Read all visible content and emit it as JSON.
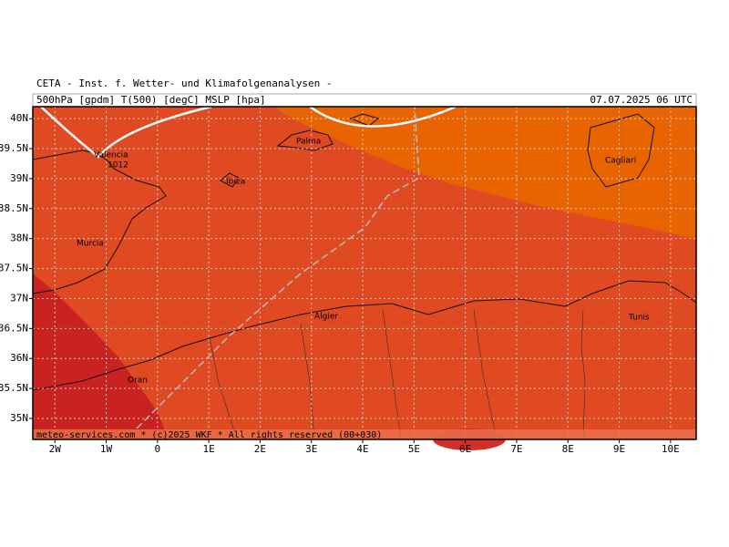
{
  "header": {
    "institute": "CETA - Inst. f. Wetter- und Klimafolgenanalysen -",
    "parameters": "500hPa [gpdm] T(500) [degC] MSLP [hpa]",
    "valid_time": "07.07.2025 06 UTC"
  },
  "map": {
    "xlim": [
      -2.43,
      10.5
    ],
    "ylim": [
      34.65,
      40.2
    ],
    "grid": true,
    "xticks": [
      {
        "value": -2,
        "label": "2W"
      },
      {
        "value": -1,
        "label": "1W"
      },
      0,
      {
        "value": 1,
        "label": "1E"
      },
      {
        "value": 2,
        "label": "2E"
      },
      {
        "value": 3,
        "label": "3E"
      },
      {
        "value": 4,
        "label": "4E"
      },
      {
        "value": 5,
        "label": "5E"
      },
      {
        "value": 6,
        "label": "6E"
      },
      {
        "value": 7,
        "label": "7E"
      },
      {
        "value": 8,
        "label": "8E"
      },
      {
        "value": 9,
        "label": "9E"
      },
      {
        "value": 10,
        "label": "10E"
      }
    ],
    "yticks": [
      {
        "value": 40,
        "label": "40N"
      },
      {
        "value": 39.5,
        "label": "39.5N"
      },
      {
        "value": 39,
        "label": "39N"
      },
      {
        "value": 38.5,
        "label": "38.5N"
      },
      {
        "value": 38,
        "label": "38N"
      },
      {
        "value": 37.5,
        "label": "37.5N"
      },
      {
        "value": 37,
        "label": "37N"
      },
      {
        "value": 36.5,
        "label": "36.5N"
      },
      {
        "value": 36,
        "label": "36N"
      },
      {
        "value": 35.5,
        "label": "35.5N"
      },
      {
        "value": 35,
        "label": "35N"
      }
    ]
  },
  "labels": {
    "cities": [
      "Valencia",
      "Murcia",
      "Palma",
      "Ibiza",
      "Algier",
      "Oran",
      "Tunis",
      "Cagliari"
    ],
    "isobars": [
      "1012"
    ]
  },
  "footer": "meteo-services.com * (c)2025 WKF * All rights reserved (00+030)"
}
